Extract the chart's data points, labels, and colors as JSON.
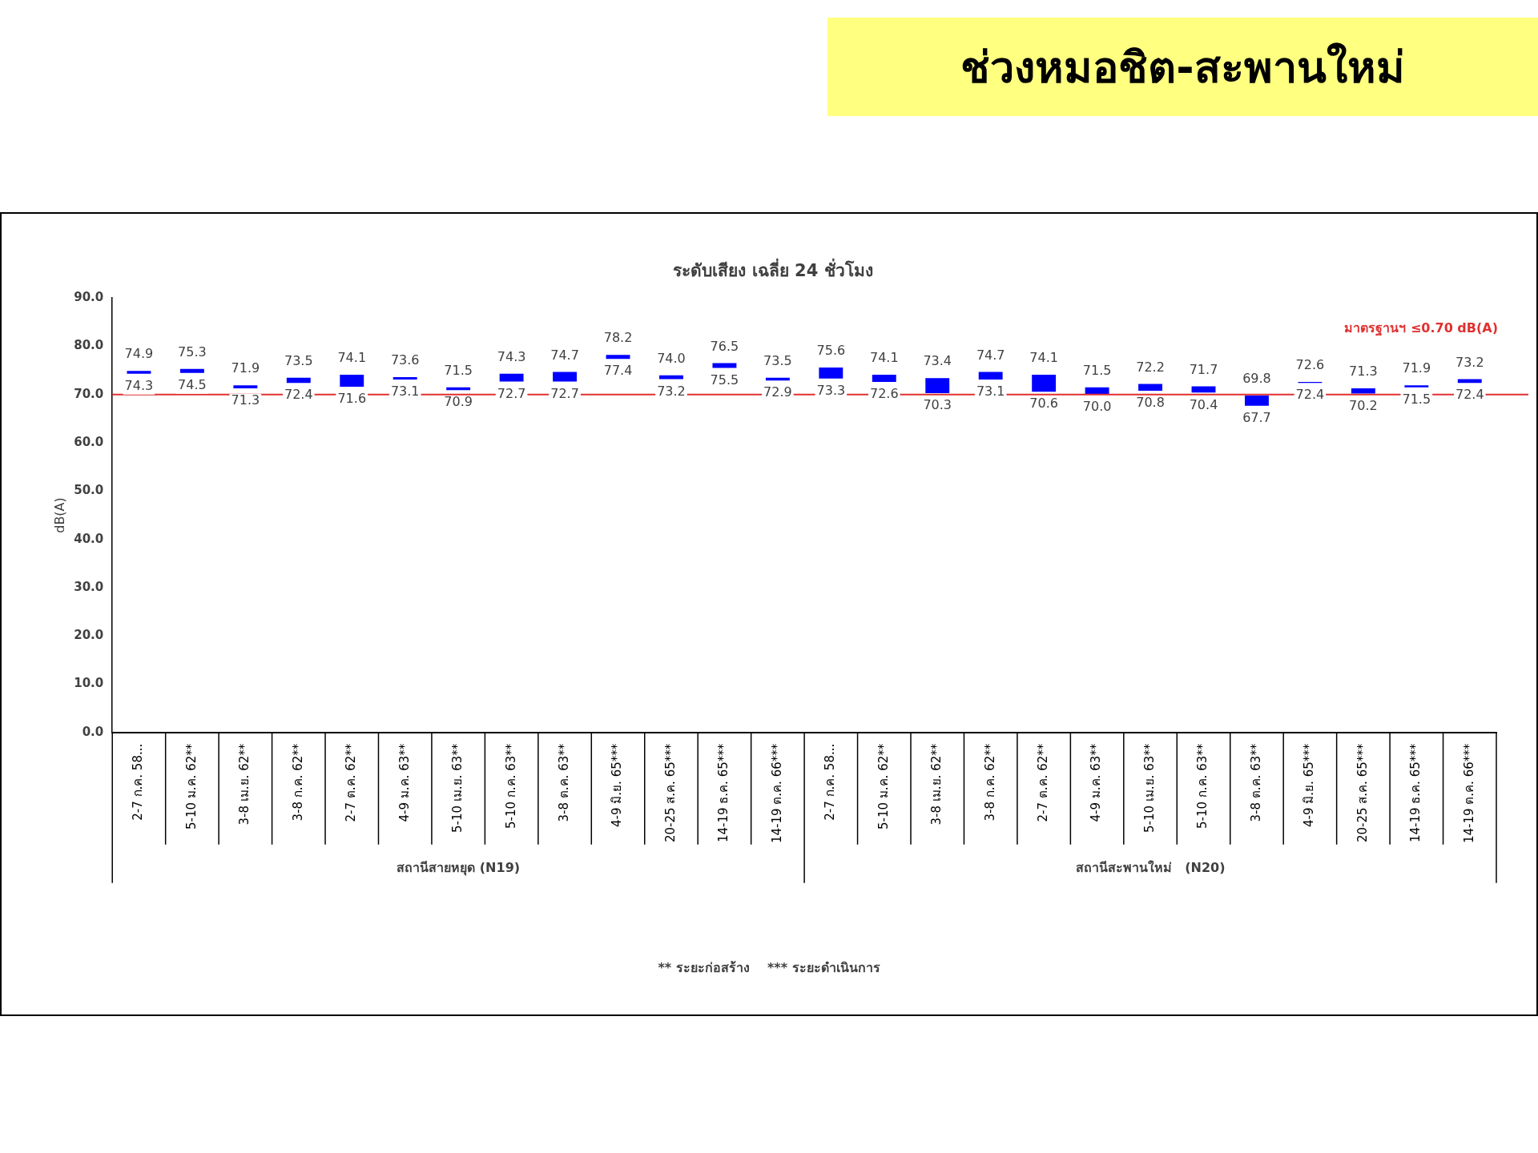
{
  "chart_data": {
    "type": "bar",
    "title": "ช่วงหมอชิต-สะพานใหม่",
    "subtitle": "ระดับเสียง เฉลี่ย 24 ชั่วโมง",
    "ylabel": "dB(A)",
    "categories": [
      "2-7 ก.ค. 58...",
      "5-10 ม.ค. 62**",
      "3-8 เม.ย. 62**",
      "3-8 ก.ค. 62**",
      "2-7 ต.ค. 62**",
      "4-9 ม.ค. 63**",
      "5-10 เม.ย. 63**",
      "5-10 ก.ค. 63**",
      "3-8 ต.ค. 63**",
      "4-9 มิ.ย. 65***",
      "20-25 ส.ค. 65***",
      "14-19 ธ.ค. 65***",
      "14-19 ต.ค. 66***",
      "2-7 ก.ค. 58...",
      "5-10 ม.ค. 62**",
      "3-8 เม.ย. 62**",
      "3-8 ก.ค. 62**",
      "2-7 ต.ค. 62**",
      "4-9 ม.ค. 63**",
      "5-10 เม.ย. 63**",
      "5-10 ก.ค. 63**",
      "3-8 ต.ค. 63**",
      "4-9 มิ.ย. 65***",
      "20-25 ส.ค. 65***",
      "14-19 ธ.ค. 65***",
      "14-19 ต.ค. 66***"
    ],
    "base": [
      74.3,
      74.5,
      71.3,
      72.4,
      71.6,
      73.1,
      70.9,
      72.7,
      72.7,
      77.4,
      73.2,
      75.5,
      72.9,
      73.3,
      72.6,
      70.3,
      73.1,
      70.6,
      70.0,
      70.8,
      70.4,
      67.7,
      72.4,
      70.2,
      71.5,
      72.4
    ],
    "values": [
      0.6,
      0.8,
      0.6,
      1.1,
      2.5,
      0.5,
      0.6,
      1.6,
      2.0,
      0.8,
      0.8,
      1.0,
      0.6,
      2.3,
      1.5,
      3.1,
      1.6,
      3.5,
      1.5,
      1.4,
      1.3,
      2.1,
      0.2,
      1.1,
      0.4,
      0.8
    ],
    "value_labels": [
      "74.9",
      "75.3",
      "71.9",
      "73.5",
      "74.1",
      "73.6",
      "71.5",
      "74.3",
      "74.7",
      "78.2",
      "74.0",
      "76.5",
      "73.5",
      "75.6",
      "74.1",
      "73.4",
      "74.7",
      "74.1",
      "71.5",
      "72.2",
      "71.7",
      "69.8",
      "72.6",
      "71.3",
      "71.9",
      "73.2"
    ],
    "color": "#0000ff",
    "ylim": [
      0,
      90
    ],
    "yticks": [
      {
        "value": 0,
        "label": "0.0"
      },
      {
        "value": 10,
        "label": "10.0"
      },
      {
        "value": 20,
        "label": "20.0"
      },
      {
        "value": 30,
        "label": "30.0"
      },
      {
        "value": 40,
        "label": "40.0"
      },
      {
        "value": 50,
        "label": "50.0"
      },
      {
        "value": 60,
        "label": "60.0"
      },
      {
        "value": 70,
        "label": "70.0"
      },
      {
        "value": 80,
        "label": "80.0"
      },
      {
        "value": 90,
        "label": "90.0"
      }
    ],
    "grid": false,
    "ref_lines": [
      {
        "axis": "y",
        "value": 70,
        "label": "มาตรฐานฯ ≤0.70 dB(A)",
        "color": "#e03030"
      }
    ],
    "annotations": [
      "สถานีสายหยุด (N19)",
      "สถานีสะพานใหม่   (N20)",
      "** ระยะก่อสร้าง    *** ระยะดำเนินการ",
      {
        "text": "74.3",
        "y": 74.3
      },
      {
        "text": "74.5",
        "y": 74.5
      },
      {
        "text": "71.3",
        "y": 71.3
      },
      {
        "text": "72.4",
        "y": 72.4
      },
      {
        "text": "71.6",
        "y": 71.6
      },
      {
        "text": "73.1",
        "y": 73.1
      },
      {
        "text": "70.9",
        "y": 70.9
      },
      {
        "text": "72.7",
        "y": 72.7
      },
      {
        "text": "72.7",
        "y": 72.7
      },
      {
        "text": "77.4",
        "y": 77.4
      },
      {
        "text": "73.2",
        "y": 73.2
      },
      {
        "text": "75.5",
        "y": 75.5
      },
      {
        "text": "72.9",
        "y": 72.9
      },
      {
        "text": "73.3",
        "y": 73.3
      },
      {
        "text": "72.6",
        "y": 72.6
      },
      {
        "text": "70.3",
        "y": 70.3
      },
      {
        "text": "73.1",
        "y": 73.1
      },
      {
        "text": "70.6",
        "y": 70.6
      },
      {
        "text": "70.0",
        "y": 70.0
      },
      {
        "text": "70.8",
        "y": 70.8
      },
      {
        "text": "70.4",
        "y": 70.4
      },
      {
        "text": "67.7",
        "y": 67.7
      },
      {
        "text": "72.4",
        "y": 72.4
      },
      {
        "text": "70.2",
        "y": 70.2
      },
      {
        "text": "71.5",
        "y": 71.5
      },
      {
        "text": "72.4",
        "y": 72.4
      }
    ]
  }
}
